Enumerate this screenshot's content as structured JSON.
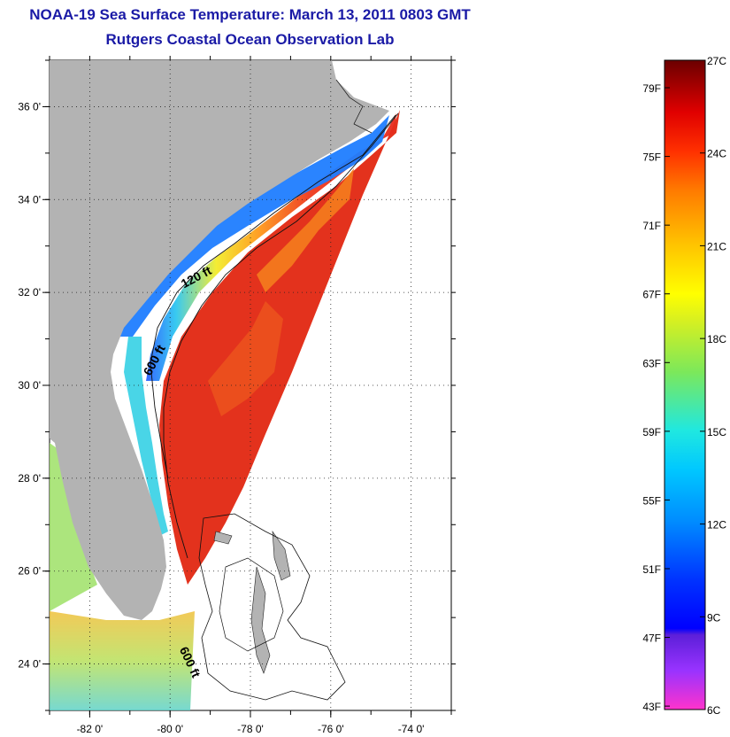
{
  "title": {
    "line1": "NOAA-19 Sea Surface Temperature:  March 13, 2011 0803 GMT",
    "line2": "Rutgers Coastal Ocean Observation Lab"
  },
  "map": {
    "lon_range": [
      -83,
      -73
    ],
    "lat_range": [
      23,
      37
    ],
    "lon_ticks": [
      {
        "value": -82,
        "label": "-82 0'"
      },
      {
        "value": -80,
        "label": "-80 0'"
      },
      {
        "value": -78,
        "label": "-78 0'"
      },
      {
        "value": -76,
        "label": "-76 0'"
      },
      {
        "value": -74,
        "label": "-74 0'"
      }
    ],
    "lat_ticks": [
      {
        "value": 24,
        "label": "24 0'"
      },
      {
        "value": 26,
        "label": "26 0'"
      },
      {
        "value": 28,
        "label": "28 0'"
      },
      {
        "value": 30,
        "label": "30 0'"
      },
      {
        "value": 32,
        "label": "32 0'"
      },
      {
        "value": 34,
        "label": "34 0'"
      },
      {
        "value": 36,
        "label": "36 0'"
      }
    ],
    "contour_labels": [
      {
        "text": "120 ft",
        "lon": -79.3,
        "lat": 32.25,
        "angle": -28
      },
      {
        "text": "600 ft",
        "lon": -80.3,
        "lat": 30.5,
        "angle": -62
      },
      {
        "text": "600 ft",
        "lon": -79.6,
        "lat": 24.0,
        "angle": 65
      }
    ],
    "colors": {
      "land": "#b3b3b3",
      "warm_core": "#e62b1c",
      "shelf_cold": "#1a78ff"
    }
  },
  "colorbar": {
    "min_c": 6,
    "max_c": 27,
    "fahrenheit_ticks": [
      {
        "value": 43,
        "label": "43F"
      },
      {
        "value": 47,
        "label": "47F"
      },
      {
        "value": 51,
        "label": "51F"
      },
      {
        "value": 55,
        "label": "55F"
      },
      {
        "value": 59,
        "label": "59F"
      },
      {
        "value": 63,
        "label": "63F"
      },
      {
        "value": 67,
        "label": "67F"
      },
      {
        "value": 71,
        "label": "71F"
      },
      {
        "value": 75,
        "label": "75F"
      },
      {
        "value": 79,
        "label": "79F"
      }
    ],
    "celsius_ticks": [
      {
        "value": 6,
        "label": "6C"
      },
      {
        "value": 9,
        "label": "9C"
      },
      {
        "value": 12,
        "label": "12C"
      },
      {
        "value": 15,
        "label": "15C"
      },
      {
        "value": 18,
        "label": "18C"
      },
      {
        "value": 21,
        "label": "21C"
      },
      {
        "value": 24,
        "label": "24C"
      },
      {
        "value": 27,
        "label": "27C"
      }
    ]
  }
}
